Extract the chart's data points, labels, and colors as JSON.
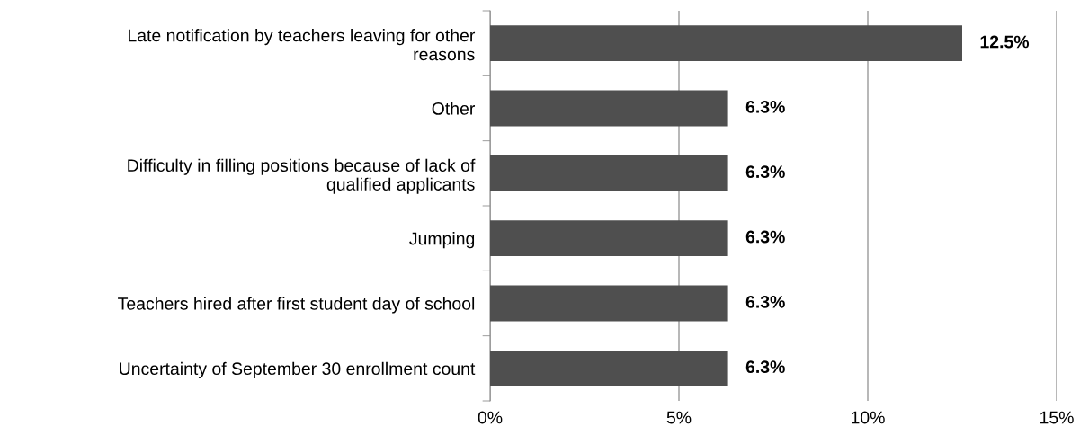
{
  "chart_data": {
    "type": "bar",
    "orientation": "horizontal",
    "categories": [
      "Late notification by teachers leaving for other\nreasons",
      "Other",
      "Difficulty in filling positions because of lack of\nqualified applicants",
      "Jumping",
      "Teachers hired after first student day of school",
      "Uncertainty of September 30 enrollment count"
    ],
    "values": [
      12.5,
      6.3,
      6.3,
      6.3,
      6.3,
      6.3
    ],
    "value_labels": [
      "12.5%",
      "6.3%",
      "6.3%",
      "6.3%",
      "6.3%",
      "6.3%"
    ],
    "color": "#4f4f4f",
    "xlim": [
      0,
      15
    ],
    "xticks": [
      {
        "value": 0,
        "label": "0%"
      },
      {
        "value": 5,
        "label": "5%"
      },
      {
        "value": 10,
        "label": "10%"
      },
      {
        "value": 15,
        "label": "15%"
      }
    ],
    "grid": "x"
  }
}
